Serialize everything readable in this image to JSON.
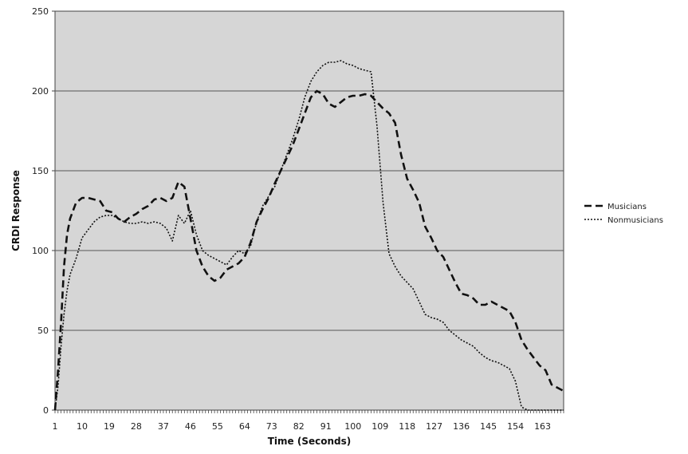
{
  "chart_data": {
    "type": "line",
    "title": "",
    "xlabel": "Time (Seconds)",
    "ylabel": "CRDI Response",
    "xlim": [
      1,
      170
    ],
    "ylim": [
      0,
      250
    ],
    "y_ticks": [
      0,
      50,
      100,
      150,
      200,
      250
    ],
    "x_tick_labels": [
      "1",
      "10",
      "19",
      "28",
      "37",
      "46",
      "55",
      "64",
      "73",
      "82",
      "91",
      "100",
      "109",
      "118",
      "127",
      "136",
      "145",
      "154",
      "163"
    ],
    "x_tick_values": [
      1,
      10,
      19,
      28,
      37,
      46,
      55,
      64,
      73,
      82,
      91,
      100,
      109,
      118,
      127,
      136,
      145,
      154,
      163
    ],
    "grid": "horizontal",
    "legend_position": "right",
    "plot_background": "#d6d6d6",
    "series": [
      {
        "name": "Musicians",
        "style": "dashed",
        "color": "#111111",
        "x": [
          1,
          2,
          3,
          4,
          5,
          6,
          8,
          10,
          12,
          14,
          16,
          18,
          20,
          22,
          24,
          26,
          28,
          30,
          32,
          34,
          36,
          38,
          40,
          42,
          44,
          46,
          48,
          50,
          52,
          54,
          56,
          58,
          60,
          62,
          64,
          66,
          68,
          70,
          72,
          74,
          76,
          78,
          80,
          82,
          84,
          86,
          88,
          90,
          92,
          94,
          96,
          98,
          100,
          102,
          104,
          106,
          108,
          110,
          112,
          114,
          116,
          118,
          120,
          122,
          124,
          126,
          128,
          130,
          132,
          134,
          136,
          138,
          140,
          142,
          144,
          146,
          148,
          150,
          152,
          154,
          156,
          158,
          160,
          162,
          164,
          166,
          168,
          170
        ],
        "values": [
          0,
          25,
          55,
          90,
          110,
          120,
          130,
          133,
          133,
          132,
          131,
          125,
          124,
          120,
          118,
          121,
          123,
          126,
          128,
          132,
          133,
          131,
          133,
          143,
          140,
          120,
          100,
          90,
          84,
          81,
          83,
          88,
          90,
          92,
          96,
          105,
          118,
          126,
          133,
          142,
          150,
          158,
          166,
          176,
          186,
          196,
          200,
          198,
          192,
          190,
          193,
          196,
          197,
          197,
          198,
          197,
          193,
          189,
          186,
          180,
          160,
          145,
          138,
          130,
          115,
          108,
          100,
          96,
          88,
          80,
          73,
          72,
          70,
          66,
          66,
          68,
          66,
          64,
          62,
          55,
          44,
          38,
          33,
          28,
          25,
          16,
          14,
          12
        ]
      },
      {
        "name": "Nonmusicians",
        "style": "dotted",
        "color": "#111111",
        "x": [
          1,
          2,
          3,
          4,
          5,
          6,
          8,
          10,
          12,
          14,
          16,
          18,
          20,
          22,
          24,
          26,
          28,
          30,
          32,
          34,
          36,
          38,
          40,
          42,
          44,
          46,
          48,
          50,
          52,
          54,
          56,
          58,
          60,
          62,
          64,
          66,
          68,
          70,
          72,
          74,
          76,
          78,
          80,
          82,
          84,
          86,
          88,
          90,
          92,
          94,
          96,
          98,
          100,
          102,
          104,
          106,
          108,
          110,
          112,
          114,
          116,
          118,
          120,
          122,
          124,
          126,
          128,
          130,
          132,
          134,
          136,
          138,
          140,
          142,
          144,
          146,
          148,
          150,
          152,
          154,
          156,
          158,
          160,
          162,
          164,
          166,
          168,
          170
        ],
        "values": [
          0,
          15,
          40,
          60,
          75,
          85,
          95,
          108,
          113,
          118,
          121,
          122,
          122,
          120,
          118,
          117,
          117,
          118,
          117,
          118,
          117,
          114,
          106,
          122,
          117,
          125,
          110,
          100,
          97,
          95,
          93,
          91,
          96,
          100,
          98,
          103,
          118,
          128,
          134,
          140,
          150,
          160,
          170,
          182,
          196,
          206,
          212,
          216,
          218,
          218,
          219,
          217,
          216,
          214,
          213,
          212,
          178,
          130,
          98,
          90,
          84,
          80,
          76,
          68,
          60,
          58,
          57,
          55,
          50,
          47,
          44,
          42,
          40,
          36,
          33,
          31,
          30,
          28,
          26,
          18,
          2,
          0,
          0,
          0,
          0,
          0,
          0,
          0
        ]
      }
    ]
  }
}
